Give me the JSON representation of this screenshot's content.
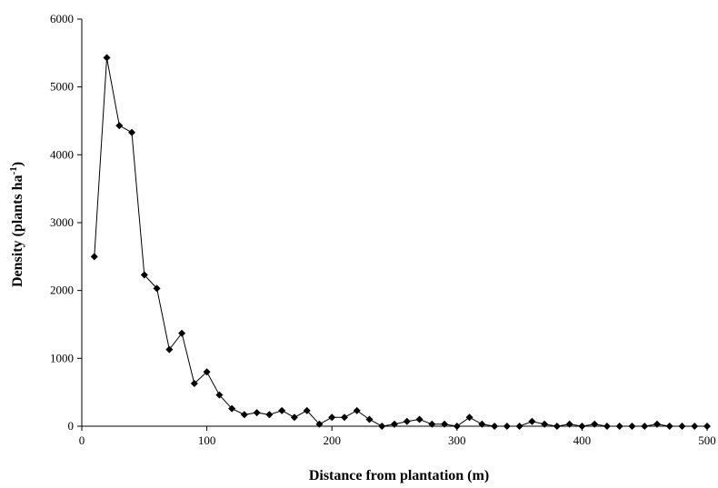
{
  "chart_data": {
    "type": "line",
    "title": "",
    "xlabel": "Distance from plantation (m)",
    "ylabel": {
      "main": "Density (plants ha",
      "superscript": "-1",
      "close": ")"
    },
    "xlim": [
      0,
      500
    ],
    "ylim": [
      0,
      6000
    ],
    "xticks": [
      0,
      100,
      200,
      300,
      400,
      500
    ],
    "yticks": [
      0,
      1000,
      2000,
      3000,
      4000,
      5000,
      6000
    ],
    "grid": false,
    "legend": "none",
    "series": [
      {
        "color": "#000000",
        "marker": "diamond",
        "x": [
          10,
          20,
          30,
          40,
          50,
          60,
          70,
          80,
          90,
          100,
          110,
          120,
          130,
          140,
          150,
          160,
          170,
          180,
          190,
          200,
          210,
          220,
          230,
          240,
          250,
          260,
          270,
          280,
          290,
          300,
          310,
          320,
          330,
          340,
          350,
          360,
          370,
          380,
          390,
          400,
          410,
          420,
          430,
          440,
          450,
          460,
          470,
          480,
          490,
          500
        ],
        "y": [
          2500,
          5430,
          4430,
          4330,
          2230,
          2030,
          1130,
          1370,
          630,
          800,
          460,
          260,
          170,
          200,
          170,
          230,
          130,
          230,
          30,
          130,
          130,
          230,
          100,
          0,
          30,
          70,
          100,
          30,
          30,
          0,
          130,
          30,
          0,
          0,
          0,
          70,
          30,
          0,
          30,
          0,
          30,
          0,
          0,
          0,
          0,
          30,
          0,
          0,
          0,
          0
        ]
      }
    ]
  }
}
